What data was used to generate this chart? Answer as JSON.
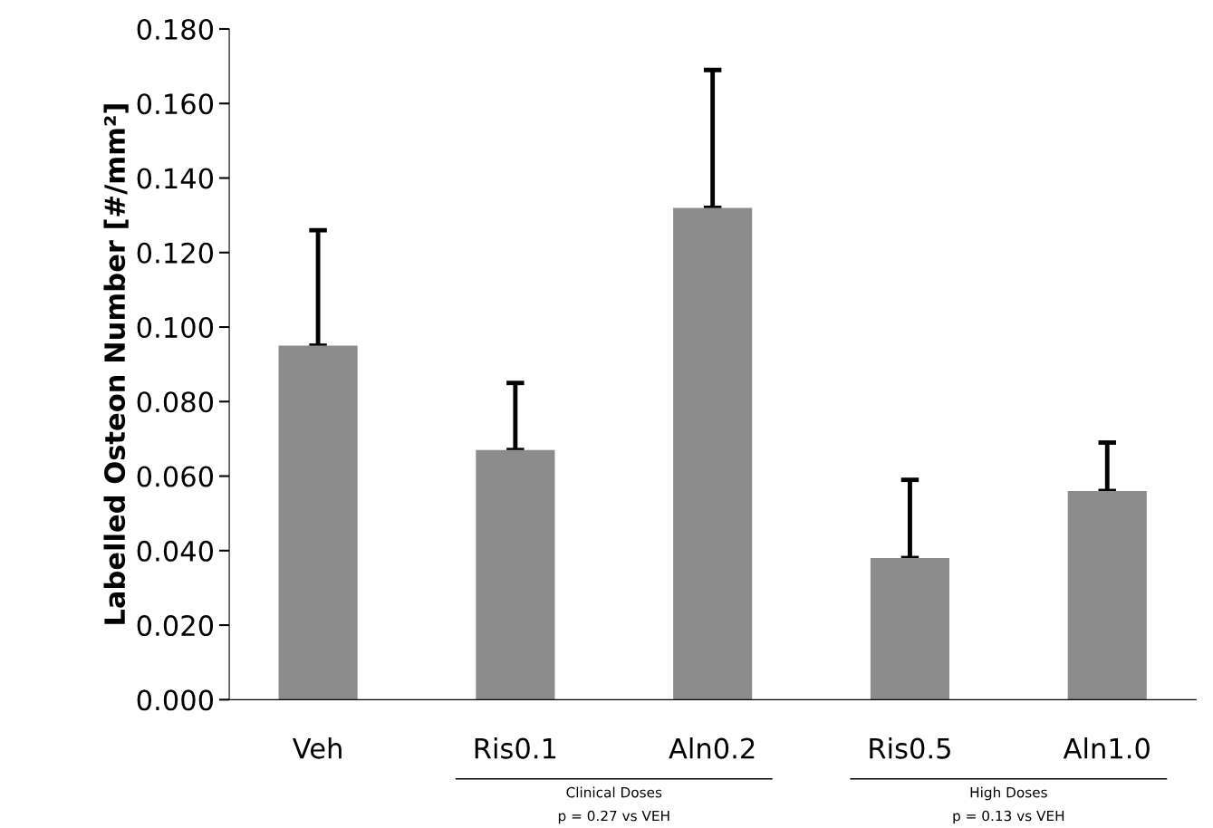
{
  "chart_data": {
    "type": "bar",
    "ylabel": "Labelled Osteon Number [#/mm²]",
    "categories": [
      "Veh",
      "Ris0.1",
      "Aln0.2",
      "Ris0.5",
      "Aln1.0"
    ],
    "values": [
      0.095,
      0.067,
      0.132,
      0.038,
      0.056
    ],
    "errors": [
      [
        0.095,
        0.126
      ],
      [
        0.067,
        0.085
      ],
      [
        0.132,
        0.169
      ],
      [
        0.038,
        0.059
      ],
      [
        0.056,
        0.069
      ]
    ],
    "color": "#8c8c8c",
    "ylim": [
      0,
      0.18
    ],
    "yticks": [
      {
        "value": 0,
        "label": "0.000"
      },
      {
        "value": 0.02,
        "label": "0.020"
      },
      {
        "value": 0.04,
        "label": "0.040"
      },
      {
        "value": 0.06,
        "label": "0.060"
      },
      {
        "value": 0.08,
        "label": "0.080"
      },
      {
        "value": 0.1,
        "label": "0.100"
      },
      {
        "value": 0.12,
        "label": "0.120"
      },
      {
        "value": 0.14,
        "label": "0.140"
      },
      {
        "value": 0.16,
        "label": "0.160"
      },
      {
        "value": 0.18,
        "label": "0.180"
      }
    ],
    "annotations": [
      "Clinical Doses",
      "p = 0.27 vs VEH",
      "High Doses",
      "p = 0.13 vs VEH"
    ],
    "grid": false
  }
}
